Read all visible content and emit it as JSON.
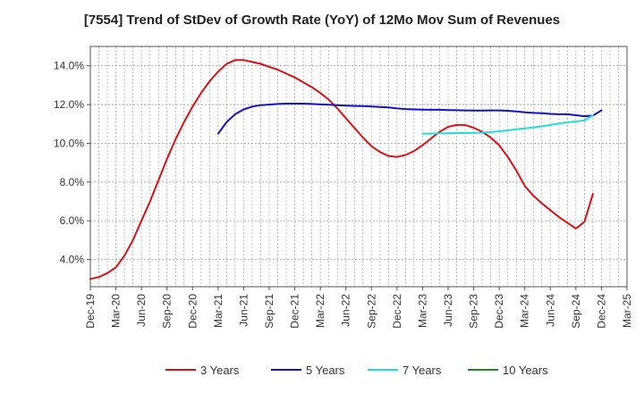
{
  "chart_data": {
    "type": "line",
    "title": "[7554]  Trend of StDev of Growth Rate (YoY) of 12Mo Mov Sum of Revenues",
    "xlabel": "",
    "ylabel": "",
    "x_ticks": [
      "Dec-19",
      "Mar-20",
      "Jun-20",
      "Sep-20",
      "Dec-20",
      "Mar-21",
      "Jun-21",
      "Sep-21",
      "Dec-21",
      "Mar-22",
      "Jun-22",
      "Sep-22",
      "Dec-22",
      "Mar-23",
      "Jun-23",
      "Sep-23",
      "Dec-23",
      "Mar-24",
      "Jun-24",
      "Sep-24",
      "Dec-24",
      "Mar-25"
    ],
    "y_ticks": [
      4.0,
      6.0,
      8.0,
      10.0,
      12.0,
      14.0
    ],
    "y_tick_labels": [
      "4.0%",
      "6.0%",
      "8.0%",
      "10.0%",
      "12.0%",
      "14.0%"
    ],
    "ylim": [
      2.6,
      15.0
    ],
    "grid": true,
    "legend_position": "bottom",
    "series": [
      {
        "name": "3 Years",
        "color": "#dd1111",
        "start_month_index": 0,
        "values": [
          3.0,
          3.1,
          3.3,
          3.6,
          4.2,
          5.0,
          6.0,
          7.0,
          8.1,
          9.2,
          10.2,
          11.1,
          11.9,
          12.6,
          13.2,
          13.7,
          14.1,
          14.3,
          14.3,
          14.2,
          14.1,
          13.95,
          13.8,
          13.6,
          13.4,
          13.15,
          12.9,
          12.6,
          12.25,
          11.8,
          11.3,
          10.8,
          10.3,
          9.85,
          9.55,
          9.35,
          9.3,
          9.4,
          9.6,
          9.9,
          10.25,
          10.6,
          10.85,
          10.95,
          10.95,
          10.8,
          10.6,
          10.3,
          9.9,
          9.3,
          8.6,
          7.8,
          7.3,
          6.9,
          6.55,
          6.2,
          5.9,
          5.6,
          5.95,
          7.4
        ]
      },
      {
        "name": "5 Years",
        "color": "#1111cc",
        "start_month_index": 15,
        "values": [
          10.5,
          11.1,
          11.5,
          11.75,
          11.9,
          11.97,
          12.0,
          12.03,
          12.05,
          12.05,
          12.05,
          12.03,
          12.01,
          11.99,
          11.97,
          11.95,
          11.93,
          11.92,
          11.9,
          11.88,
          11.85,
          11.8,
          11.77,
          11.75,
          11.74,
          11.73,
          11.73,
          11.72,
          11.71,
          11.7,
          11.69,
          11.69,
          11.7,
          11.7,
          11.68,
          11.65,
          11.6,
          11.57,
          11.55,
          11.52,
          11.5,
          11.5,
          11.45,
          11.4,
          11.43,
          11.7
        ]
      },
      {
        "name": "7 Years",
        "color": "#22dddd",
        "start_month_index": 39,
        "values": [
          10.5,
          10.5,
          10.52,
          10.52,
          10.53,
          10.53,
          10.54,
          10.55,
          10.58,
          10.62,
          10.67,
          10.72,
          10.77,
          10.82,
          10.88,
          10.95,
          11.02,
          11.08,
          11.13,
          11.18,
          11.45
        ]
      },
      {
        "name": "10 Years",
        "color": "#228822",
        "start_month_index": 0,
        "values": []
      }
    ]
  }
}
